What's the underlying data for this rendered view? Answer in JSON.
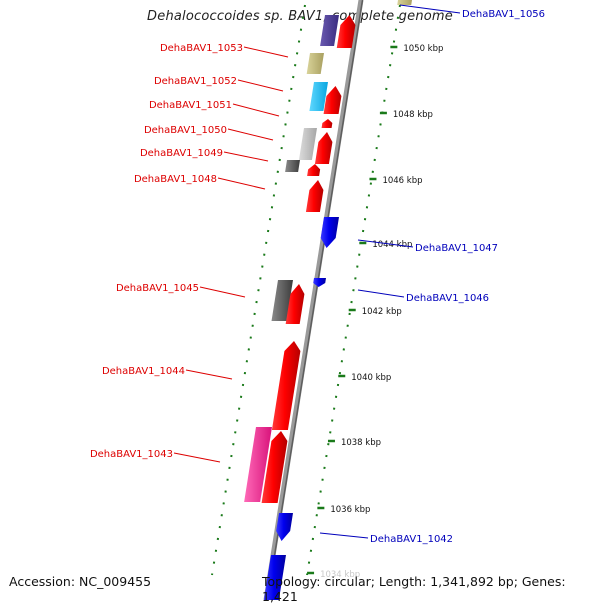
{
  "title": "Dehalococcoides sp. BAV1, complete genome",
  "accession": "Accession: NC_009455",
  "topology": "Topology: circular; Length: 1,341,892 bp; Genes: 1,421",
  "colors": {
    "forward_label": "#dd0000",
    "reverse_label": "#0000bb",
    "tick": "#1a7a1a",
    "backbone": "#8a8a8a"
  },
  "ticks": [
    "1050 kbp",
    "1048 kbp",
    "1046 kbp",
    "1044 kbp",
    "1042 kbp",
    "1040 kbp",
    "1038 kbp",
    "1036 kbp",
    "1034 kbp"
  ],
  "forward_genes": [
    {
      "name": "DehaBAV1_1053"
    },
    {
      "name": "DehaBAV1_1052"
    },
    {
      "name": "DehaBAV1_1051"
    },
    {
      "name": "DehaBAV1_1050"
    },
    {
      "name": "DehaBAV1_1049"
    },
    {
      "name": "DehaBAV1_1048"
    },
    {
      "name": "DehaBAV1_1045"
    },
    {
      "name": "DehaBAV1_1044"
    },
    {
      "name": "DehaBAV1_1043"
    }
  ],
  "reverse_genes": [
    {
      "name": "DehaBAV1_1056"
    },
    {
      "name": "DehaBAV1_1047"
    },
    {
      "name": "DehaBAV1_1046"
    },
    {
      "name": "DehaBAV1_1042"
    }
  ]
}
